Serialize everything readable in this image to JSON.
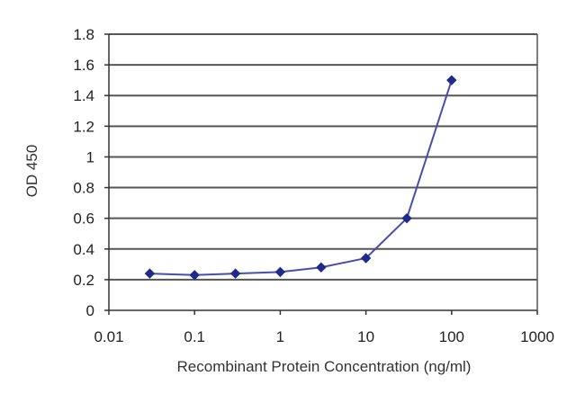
{
  "chart_data": {
    "type": "line",
    "title": "",
    "xlabel": "Recombinant Protein Concentration (ng/ml)",
    "ylabel": "OD 450",
    "xscale": "log",
    "xlim": [
      0.01,
      1000
    ],
    "ylim": [
      0,
      1.8
    ],
    "xticks": [
      "0.01",
      "0.1",
      "1",
      "10",
      "100",
      "1000"
    ],
    "yticks": [
      "0",
      "0.2",
      "0.4",
      "0.6",
      "0.8",
      "1",
      "1.2",
      "1.4",
      "1.6",
      "1.8"
    ],
    "grid": "horizontal",
    "legend": "none",
    "series": [
      {
        "color": "#4a4db0",
        "marker_color": "#1e2a8c",
        "x": [
          0.03,
          0.1,
          0.3,
          1,
          3,
          10,
          30,
          100
        ],
        "y": [
          0.24,
          0.23,
          0.24,
          0.25,
          0.28,
          0.34,
          0.6,
          1.5
        ]
      }
    ],
    "colors": {
      "grid": "#555555",
      "axis": "#333333",
      "background": "#ffffff"
    }
  }
}
